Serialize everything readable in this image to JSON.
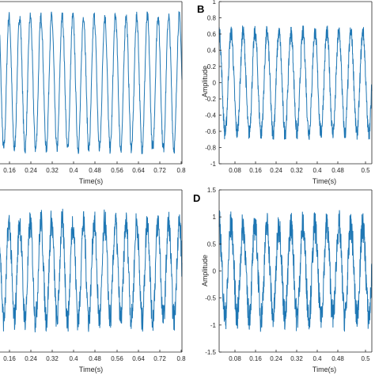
{
  "colors": {
    "signal": "#1f77b4",
    "axis": "#262626",
    "background": "#ffffff"
  },
  "chart_data": [
    {
      "type": "line",
      "panel_label": "",
      "xlabel": "Time(s)",
      "ylabel": "",
      "x_ticks": [
        "0.16",
        "0.24",
        "0.32",
        "0.4",
        "0.48",
        "0.56",
        "0.64",
        "0.72",
        "0.8"
      ],
      "y_ticks": [],
      "xlim": [
        0.11,
        0.8
      ],
      "ylim": [
        -1.0,
        1.0
      ],
      "series": [
        {
          "frequency_hz": 25,
          "amplitude": 0.82,
          "noise": 0.05
        }
      ]
    },
    {
      "type": "line",
      "panel_label": "B",
      "xlabel": "Time(s)",
      "ylabel": "Amplitude",
      "x_ticks": [
        "0.08",
        "0.16",
        "0.24",
        "0.32",
        "0.4",
        "0.48",
        "0.5"
      ],
      "y_ticks": [
        "1",
        "0.8",
        "0.6",
        "0.4",
        "0.2",
        "0",
        "-0.2",
        "-0.4",
        "-0.6",
        "-0.8",
        "-1"
      ],
      "xlim": [
        0,
        0.51
      ],
      "ylim": [
        -1,
        1
      ],
      "series": [
        {
          "frequency_hz": 25,
          "amplitude": 0.62,
          "noise": 0.07
        }
      ]
    },
    {
      "type": "line",
      "panel_label": "",
      "xlabel": "Time(s)",
      "ylabel": "",
      "x_ticks": [
        "0.16",
        "0.24",
        "0.32",
        "0.4",
        "0.48",
        "0.56",
        "0.64",
        "0.72",
        "0.8"
      ],
      "y_ticks": [],
      "xlim": [
        0.11,
        0.8
      ],
      "ylim": [
        -1.0,
        1.0
      ],
      "series": [
        {
          "frequency_hz": 25,
          "amplitude": 0.6,
          "noise": 0.12
        }
      ]
    },
    {
      "type": "line",
      "panel_label": "D",
      "xlabel": "Time(s)",
      "ylabel": "Amplitude",
      "x_ticks": [
        "0.08",
        "0.16",
        "0.24",
        "0.32",
        "0.4",
        "0.48",
        "0.5"
      ],
      "y_ticks": [
        "1.5",
        "1",
        "0.5",
        "0",
        "-0.5",
        "-1",
        "-1.5"
      ],
      "xlim": [
        0,
        0.51
      ],
      "ylim": [
        -1.5,
        1.5
      ],
      "series": [
        {
          "frequency_hz": 25,
          "amplitude": 0.85,
          "noise": 0.2
        }
      ]
    }
  ]
}
